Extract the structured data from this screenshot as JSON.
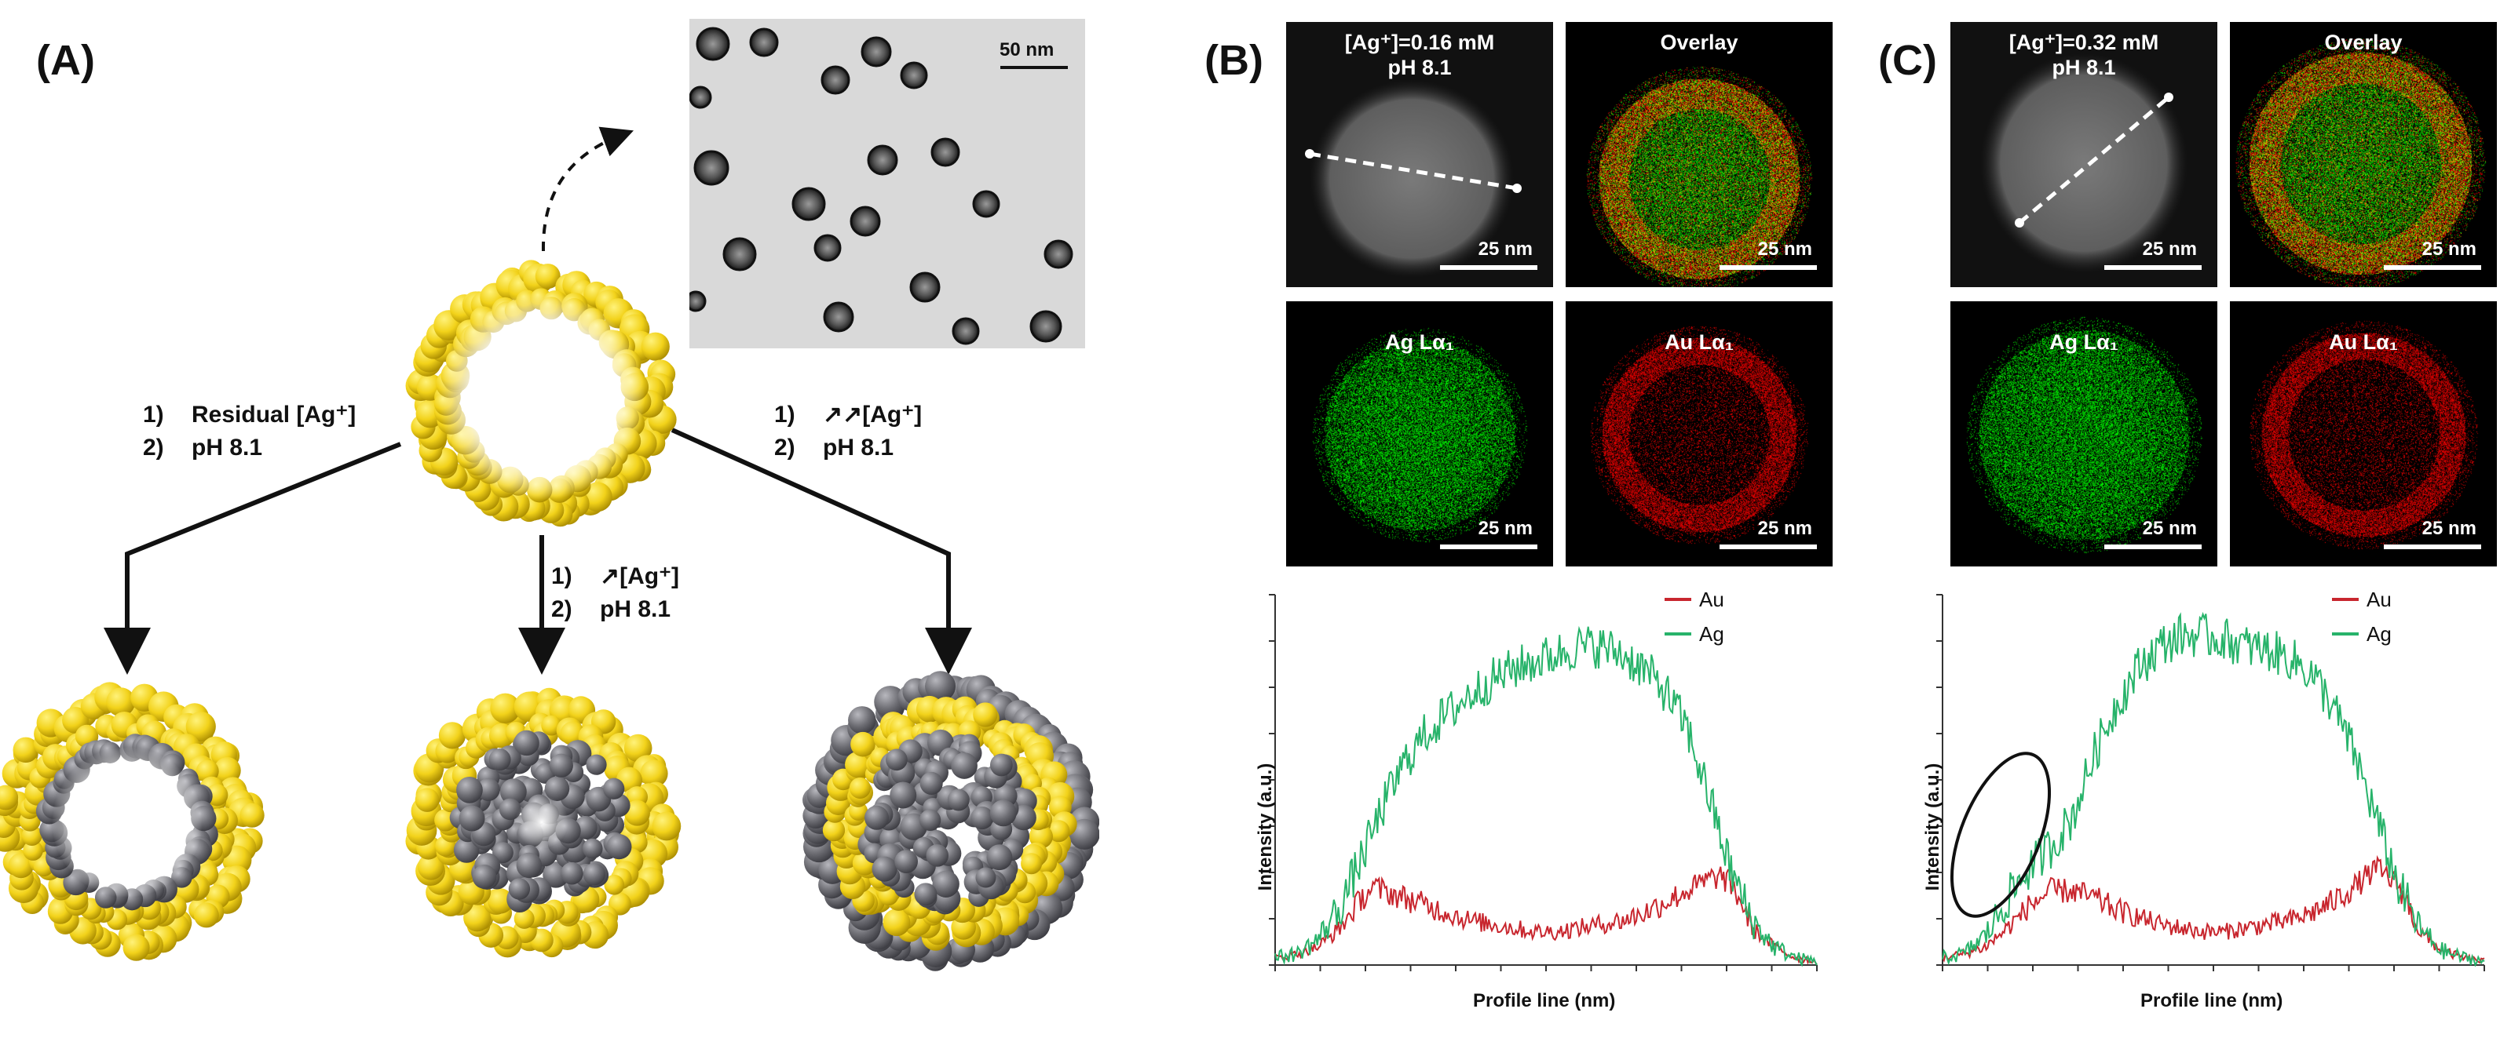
{
  "labels": {
    "a": "(A)",
    "b": "(B)",
    "c": "(C)"
  },
  "schematic": {
    "tem_scale": "50 nm",
    "left_branch": {
      "n1": "1)",
      "t1": "Residual [Ag⁺]",
      "n2": "2)",
      "t2": "pH 8.1"
    },
    "middle_branch": {
      "n1": "1)",
      "t1": "↗[Ag⁺]",
      "n2": "2)",
      "t2": "pH 8.1"
    },
    "right_branch": {
      "n1": "1)",
      "t1": "↗↗[Ag⁺]",
      "n2": "2)",
      "t2": "pH 8.1"
    }
  },
  "panel_b": {
    "condition_line1": "[Ag⁺]=0.16 mM",
    "condition_line2": "pH 8.1",
    "overlay": "Overlay",
    "ag_map": "Ag Lα₁",
    "au_map": "Au Lα₁",
    "scale": "25 nm"
  },
  "panel_c": {
    "condition_line1": "[Ag⁺]=0.32 mM",
    "condition_line2": "pH 8.1",
    "overlay": "Overlay",
    "ag_map": "Ag Lα₁",
    "au_map": "Au Lα₁",
    "scale": "25 nm"
  },
  "colors": {
    "au": "#c8262e",
    "ag": "#27b36a",
    "gold": "#f2d21a",
    "silver": "#6e6e74"
  },
  "chart_data": [
    {
      "type": "line",
      "panel": "B",
      "xlabel": "Profile line (nm)",
      "ylabel": "Intensity (a.u.)",
      "xlim": [
        0,
        100
      ],
      "ylim": [
        0,
        100
      ],
      "grid": false,
      "legend": "top-right",
      "series": [
        {
          "name": "Au",
          "color": "#c8262e",
          "x": [
            0,
            4,
            8,
            12,
            16,
            18,
            20,
            24,
            28,
            32,
            36,
            40,
            44,
            48,
            52,
            56,
            60,
            64,
            68,
            72,
            76,
            80,
            82,
            84,
            86,
            88,
            92,
            96,
            100
          ],
          "y": [
            2,
            3,
            5,
            10,
            18,
            21,
            20,
            18,
            16,
            14,
            12,
            11,
            10,
            9,
            9,
            10,
            11,
            12,
            14,
            17,
            20,
            23,
            24,
            22,
            17,
            10,
            5,
            2,
            1
          ]
        },
        {
          "name": "Ag",
          "color": "#27b36a",
          "x": [
            0,
            4,
            8,
            12,
            16,
            20,
            24,
            28,
            32,
            36,
            40,
            44,
            48,
            52,
            56,
            60,
            64,
            68,
            72,
            76,
            80,
            84,
            88,
            92,
            96,
            100
          ],
          "y": [
            2,
            3,
            7,
            16,
            29,
            43,
            55,
            63,
            68,
            73,
            77,
            80,
            82,
            84,
            86,
            86,
            84,
            80,
            74,
            64,
            46,
            26,
            12,
            5,
            2,
            1
          ]
        }
      ]
    },
    {
      "type": "line",
      "panel": "C",
      "xlabel": "Profile line (nm)",
      "ylabel": "Intensity (a.u.)",
      "xlim": [
        0,
        100
      ],
      "ylim": [
        0,
        100
      ],
      "grid": false,
      "legend": "top-right",
      "series": [
        {
          "name": "Au",
          "color": "#c8262e",
          "x": [
            0,
            4,
            8,
            12,
            16,
            20,
            24,
            28,
            32,
            36,
            40,
            44,
            48,
            52,
            56,
            60,
            64,
            68,
            72,
            76,
            80,
            84,
            86,
            88,
            92,
            96,
            100
          ],
          "y": [
            2,
            3,
            5,
            10,
            16,
            20,
            20,
            18,
            15,
            13,
            11,
            10,
            9,
            9,
            10,
            11,
            12,
            14,
            17,
            21,
            26,
            22,
            16,
            9,
            4,
            2,
            1
          ]
        },
        {
          "name": "Ag",
          "color": "#27b36a",
          "x": [
            0,
            4,
            8,
            12,
            16,
            20,
            24,
            28,
            32,
            36,
            40,
            44,
            48,
            52,
            56,
            60,
            64,
            68,
            72,
            76,
            80,
            84,
            88,
            92,
            96,
            100
          ],
          "y": [
            2,
            3,
            8,
            18,
            26,
            32,
            40,
            57,
            70,
            80,
            86,
            89,
            89,
            88,
            86,
            85,
            83,
            79,
            70,
            57,
            40,
            22,
            10,
            4,
            2,
            1
          ]
        }
      ]
    }
  ]
}
